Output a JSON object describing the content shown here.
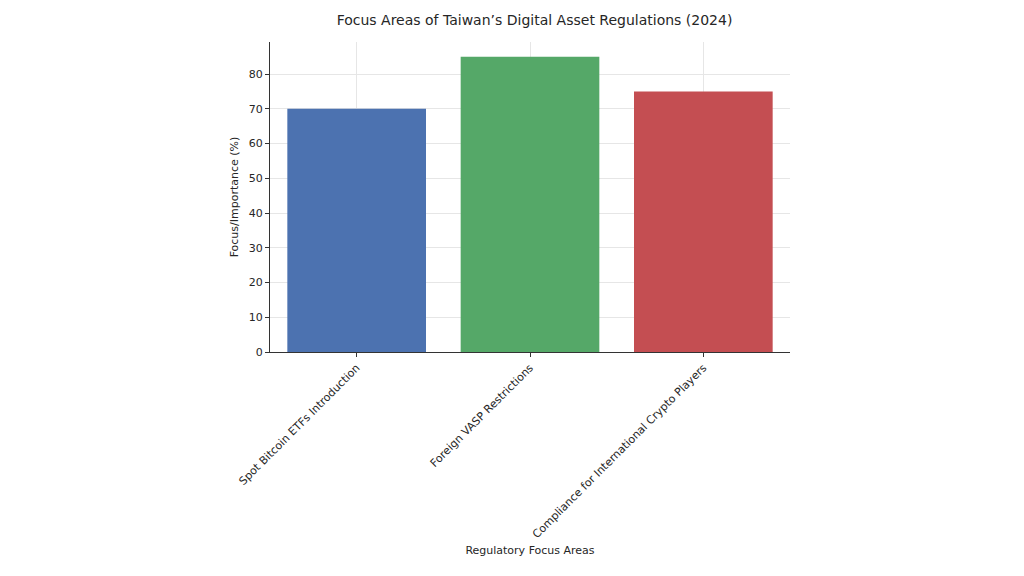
{
  "chart_data": {
    "type": "bar",
    "title": "Focus Areas of Taiwan’s Digital Asset Regulations (2024)",
    "x_label": "Regulatory Focus Areas",
    "y_label": "Focus/Importance (%)",
    "categories": [
      "Spot Bitcoin ETFs Introduction",
      "Foreign VASP Restrictions",
      "Compliance for International Crypto Players"
    ],
    "values": [
      70,
      85,
      75
    ],
    "colors": [
      "#4c72b0",
      "#55a868",
      "#c44e52"
    ],
    "ylim": [
      0,
      89.25
    ],
    "yticks": [
      0,
      10,
      20,
      30,
      40,
      50,
      60,
      70,
      80
    ],
    "grid": true
  }
}
